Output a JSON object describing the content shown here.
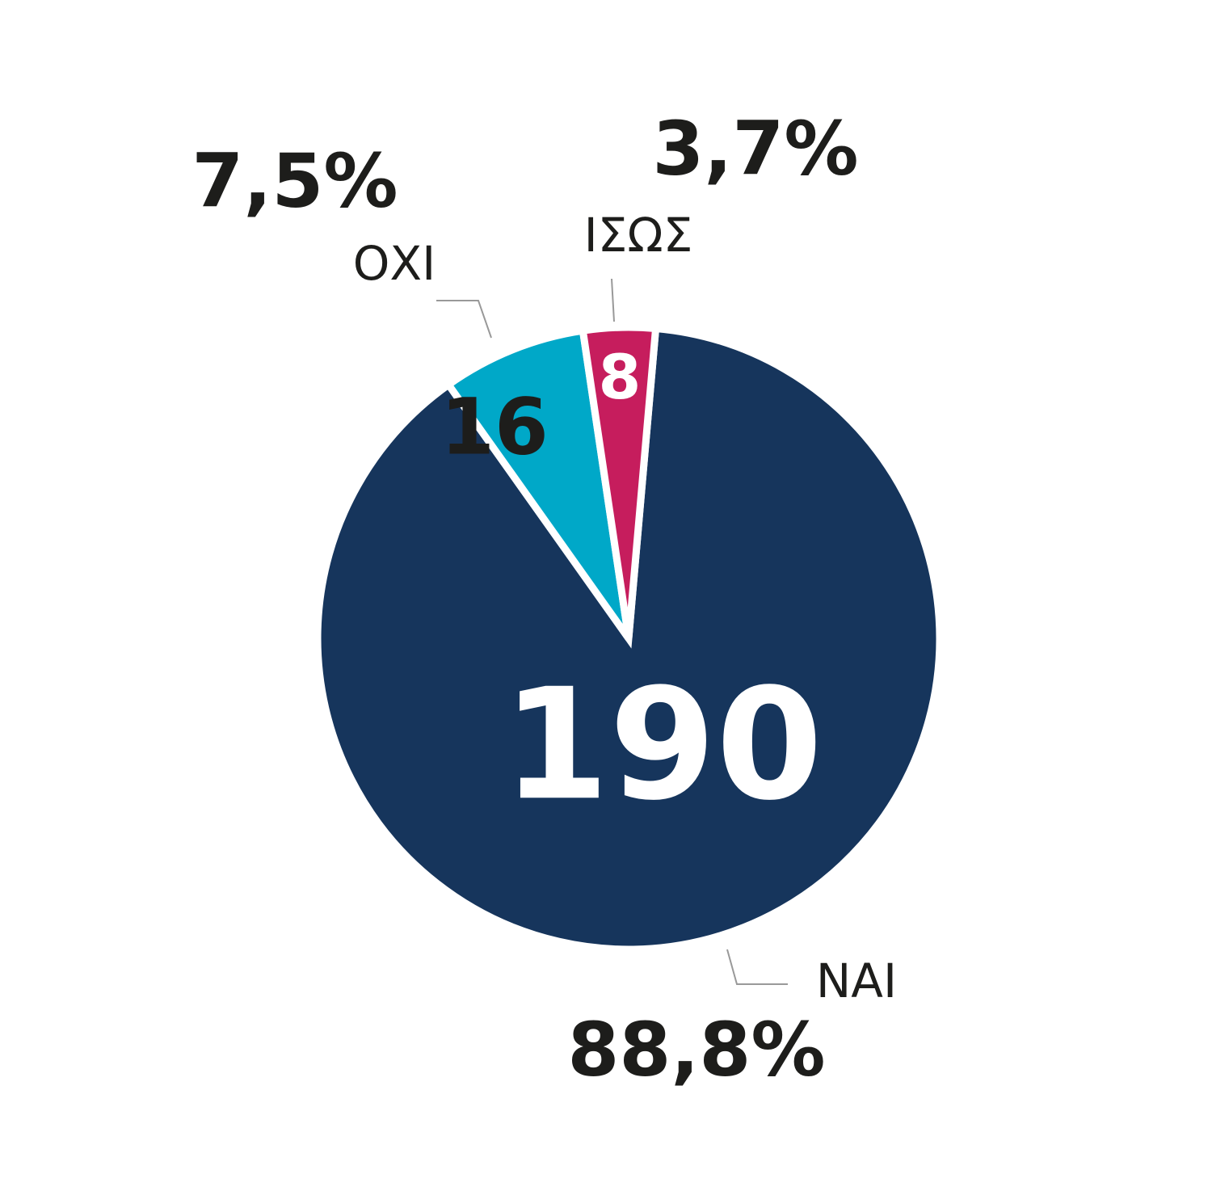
{
  "chart_data": {
    "type": "pie",
    "categories": [
      "ΝΑΙ",
      "ΟΧΙ",
      "ΙΣΩΣ"
    ],
    "values": [
      190,
      16,
      8
    ],
    "percentages": [
      88.8,
      7.5,
      3.7
    ],
    "percentage_labels": [
      "88,8%",
      "7,5%",
      "3,7%"
    ],
    "colors": [
      "#16355c",
      "#00a8c8",
      "#c61d5d"
    ]
  }
}
